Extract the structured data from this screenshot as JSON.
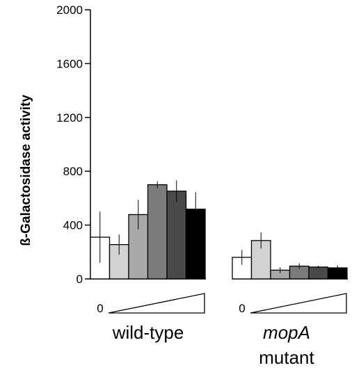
{
  "chart_data": {
    "type": "bar",
    "title": "",
    "xlabel": "",
    "ylabel": "ß-Galactosidase activity",
    "ylim": [
      0,
      2000
    ],
    "yticks": [
      0,
      400,
      800,
      1200,
      1600,
      2000
    ],
    "grid": false,
    "groups": [
      {
        "label_lines": [
          "wild-type"
        ],
        "italic": false,
        "gradient_label": "0",
        "values": [
          310,
          255,
          478,
          700,
          652,
          518
        ],
        "errors": [
          190,
          75,
          110,
          25,
          80,
          125
        ]
      },
      {
        "label_lines": [
          "mopA",
          "mutant"
        ],
        "italic": true,
        "gradient_label": "0",
        "values": [
          160,
          285,
          65,
          95,
          88,
          82
        ],
        "errors": [
          55,
          60,
          22,
          20,
          10,
          18
        ]
      }
    ],
    "bar_colors": [
      "#ffffff",
      "#d2d2d2",
      "#a8a8a8",
      "#7c7c7c",
      "#4a4a4a",
      "#000000"
    ]
  }
}
